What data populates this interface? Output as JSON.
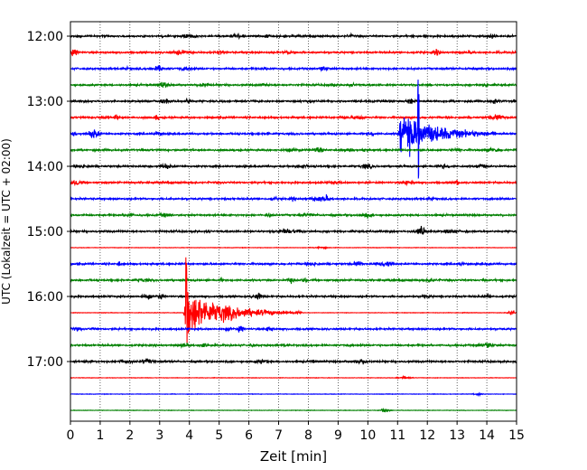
{
  "chart_data": {
    "type": "line",
    "title": "",
    "xlabel": "Zeit  [min]",
    "ylabel": "UTC (Lokalzeit = UTC + 02:00)",
    "xlim": [
      0,
      15
    ],
    "x_ticks": [
      "0",
      "1",
      "2",
      "3",
      "4",
      "5",
      "6",
      "7",
      "8",
      "9",
      "10",
      "11",
      "12",
      "13",
      "14",
      "15"
    ],
    "y_ticks": [
      {
        "label": "12:00",
        "row": 0
      },
      {
        "label": "13:00",
        "row": 4
      },
      {
        "label": "14:00",
        "row": 8
      },
      {
        "label": "15:00",
        "row": 12
      },
      {
        "label": "16:00",
        "row": 16
      },
      {
        "label": "17:00",
        "row": 20
      }
    ],
    "row_minutes": 15,
    "row_count": 24,
    "row_colors": [
      "#000000",
      "#ff0000",
      "#0000ff",
      "#008000"
    ],
    "grid": {
      "x": "dotted",
      "y": false
    },
    "events": [
      {
        "row": 17,
        "onset_min": 3.8,
        "peak_min": 3.9,
        "coda_end_min": 7.8,
        "relative_amplitude": 1.0
      },
      {
        "row": 6,
        "onset_min": 11.0,
        "peak_min": 11.7,
        "coda_end_min": 14.3,
        "relative_amplitude": 1.0
      }
    ]
  }
}
